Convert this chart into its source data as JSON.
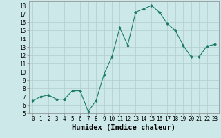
{
  "x": [
    0,
    1,
    2,
    3,
    4,
    5,
    6,
    7,
    8,
    9,
    10,
    11,
    12,
    13,
    14,
    15,
    16,
    17,
    18,
    19,
    20,
    21,
    22,
    23
  ],
  "y": [
    6.5,
    7.0,
    7.2,
    6.7,
    6.7,
    7.7,
    7.7,
    5.2,
    6.5,
    9.7,
    11.8,
    15.3,
    13.2,
    17.2,
    17.6,
    18.0,
    17.2,
    15.8,
    15.0,
    13.2,
    11.8,
    11.8,
    13.1,
    13.3
  ],
  "line_color": "#1a7a6a",
  "marker": "D",
  "marker_size": 2.0,
  "bg_color": "#cce8e8",
  "grid_color": "#b0cccc",
  "xlabel": "Humidex (Indice chaleur)",
  "ylim": [
    5,
    18.5
  ],
  "xlim": [
    -0.5,
    23.5
  ],
  "yticks": [
    5,
    6,
    7,
    8,
    9,
    10,
    11,
    12,
    13,
    14,
    15,
    16,
    17,
    18
  ],
  "xticks": [
    0,
    1,
    2,
    3,
    4,
    5,
    6,
    7,
    8,
    9,
    10,
    11,
    12,
    13,
    14,
    15,
    16,
    17,
    18,
    19,
    20,
    21,
    22,
    23
  ],
  "tick_fontsize": 5.5,
  "xlabel_fontsize": 7.5
}
